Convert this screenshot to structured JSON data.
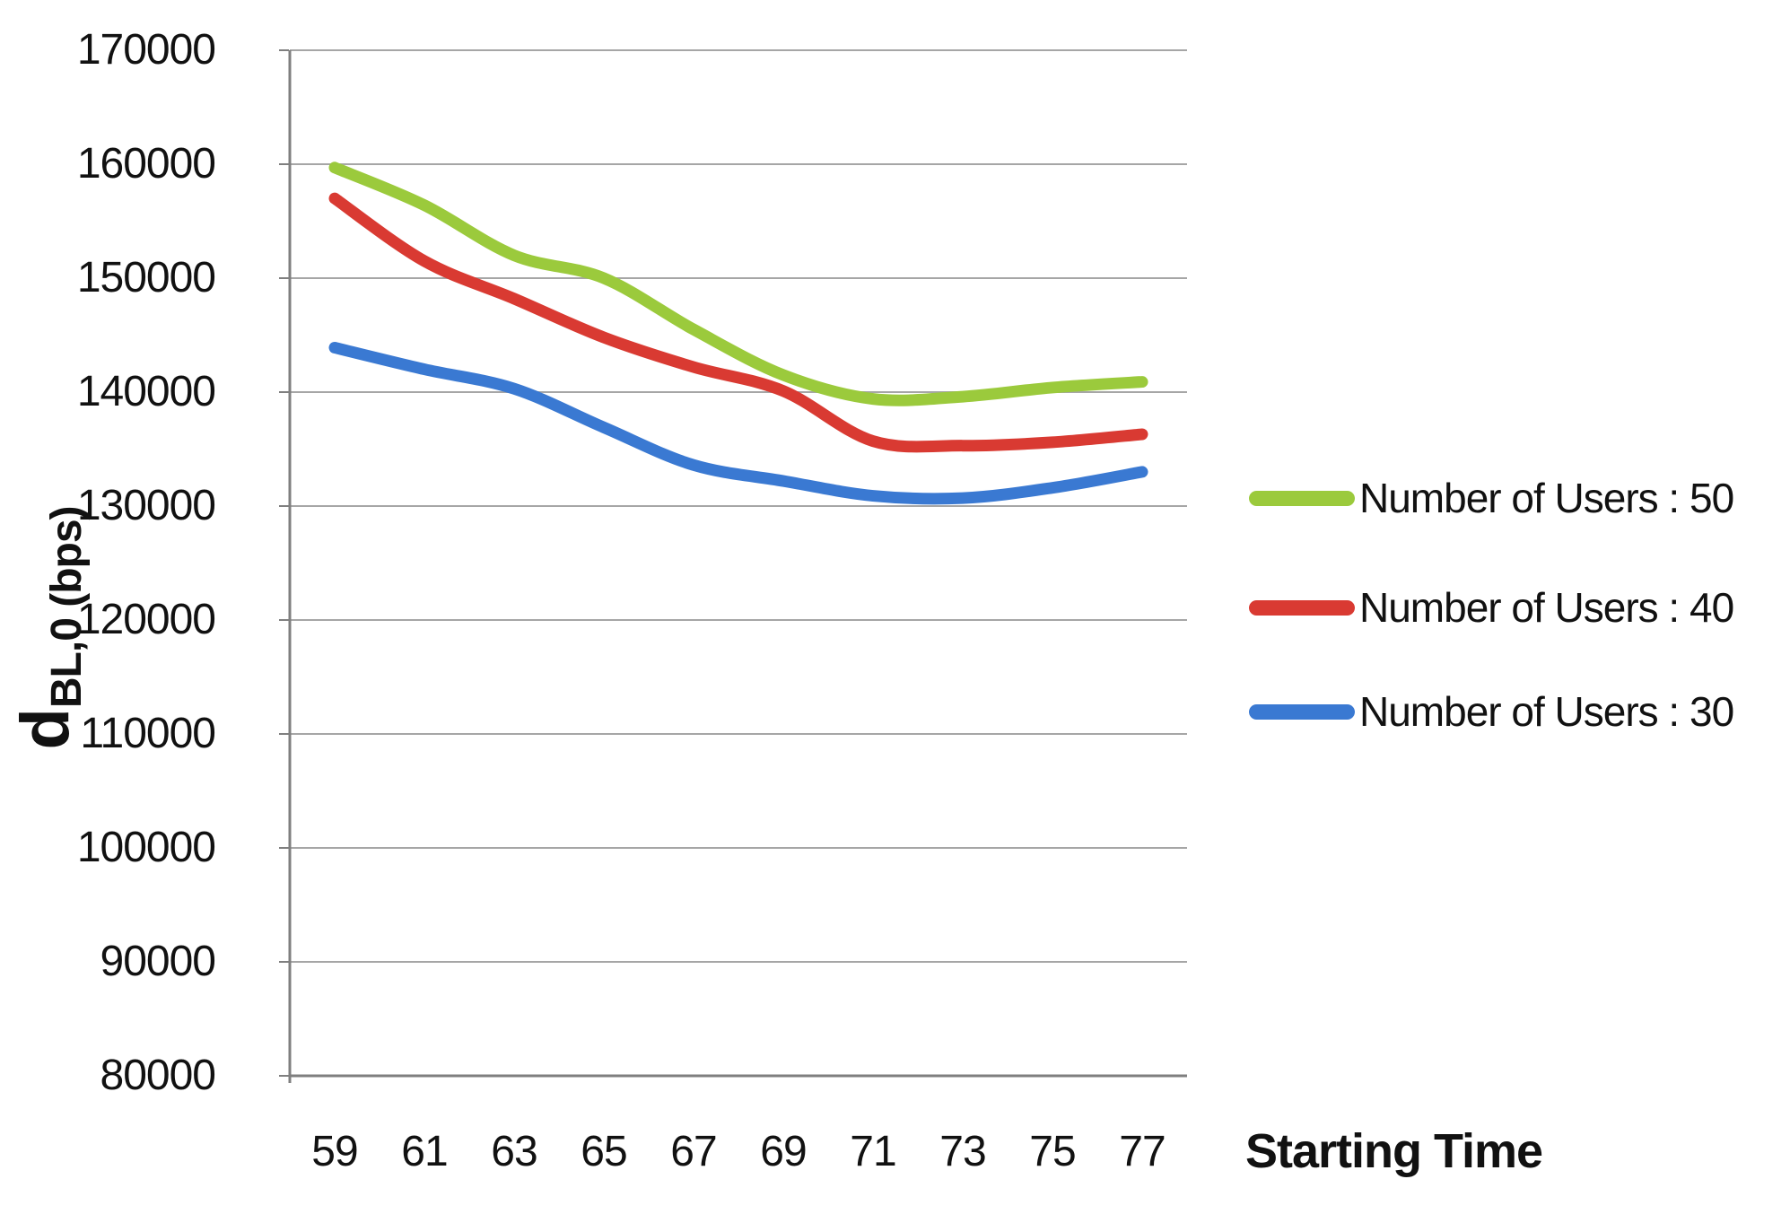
{
  "chart_data": {
    "type": "line",
    "title": "",
    "xlabel": "Starting Time",
    "ylabel": "d_BL,0 (bps)",
    "ylabel_parts": {
      "main": "d",
      "subscript": "BL,0 (bps)"
    },
    "x": [
      59,
      61,
      63,
      65,
      67,
      69,
      71,
      73,
      75,
      77
    ],
    "xticklabels": [
      "59",
      "61",
      "63",
      "65",
      "67",
      "69",
      "71",
      "73",
      "75",
      "77"
    ],
    "yticks": [
      80000,
      90000,
      100000,
      110000,
      120000,
      130000,
      140000,
      150000,
      160000,
      170000
    ],
    "ylim": [
      80000,
      170000
    ],
    "grid": true,
    "smooth_lines": true,
    "legend_position": "right",
    "series": [
      {
        "name": "Number of Users : 50",
        "color": "#9bca3c",
        "values": [
          159700,
          156400,
          152000,
          150000,
          145500,
          141500,
          139400,
          139600,
          140400,
          140900
        ]
      },
      {
        "name": "Number of Users : 40",
        "color": "#d93a32",
        "values": [
          157000,
          151500,
          148200,
          144800,
          142200,
          140100,
          135700,
          135300,
          135600,
          136300
        ]
      },
      {
        "name": "Number of Users : 30",
        "color": "#3a79d2",
        "values": [
          143900,
          142000,
          140300,
          136900,
          133600,
          132200,
          130900,
          130700,
          131600,
          133000
        ]
      }
    ]
  },
  "styles": {
    "grid_color": "#a6a6a6",
    "axis_color": "#7f7f7f",
    "text_color": "#111111"
  }
}
